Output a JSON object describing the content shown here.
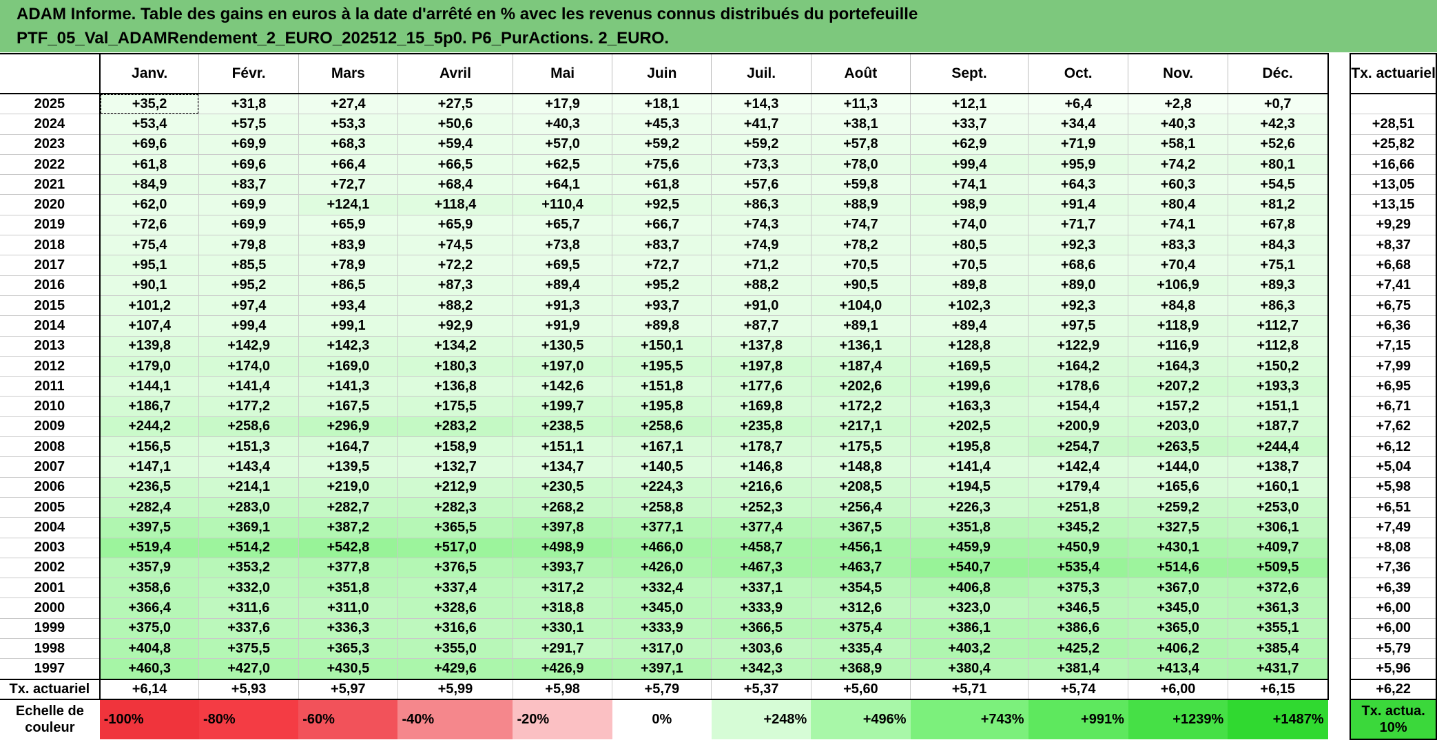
{
  "title": {
    "line1": "ADAM Informe. Table des gains en euros à la date d'arrêté en % avec les revenus connus distribués du portefeuille",
    "line2": "PTF_05_Val_ADAMRendement_2_EURO_202512_15_5p0. P6_PurActions. 2_EURO."
  },
  "columns": [
    "Janv.",
    "Févr.",
    "Mars",
    "Avril",
    "Mai",
    "Juin",
    "Juil.",
    "Août",
    "Sept.",
    "Oct.",
    "Nov.",
    "Déc."
  ],
  "tx_header": "Tx. actuariel",
  "rows": [
    {
      "year": "2025",
      "values": [
        "+35,2",
        "+31,8",
        "+27,4",
        "+27,5",
        "+17,9",
        "+18,1",
        "+14,3",
        "+11,3",
        "+12,1",
        "+6,4",
        "+2,8",
        "+0,7"
      ],
      "tx": ""
    },
    {
      "year": "2024",
      "values": [
        "+53,4",
        "+57,5",
        "+53,3",
        "+50,6",
        "+40,3",
        "+45,3",
        "+41,7",
        "+38,1",
        "+33,7",
        "+34,4",
        "+40,3",
        "+42,3"
      ],
      "tx": "+28,51"
    },
    {
      "year": "2023",
      "values": [
        "+69,6",
        "+69,9",
        "+68,3",
        "+59,4",
        "+57,0",
        "+59,2",
        "+59,2",
        "+57,8",
        "+62,9",
        "+71,9",
        "+58,1",
        "+52,6"
      ],
      "tx": "+25,82"
    },
    {
      "year": "2022",
      "values": [
        "+61,8",
        "+69,6",
        "+66,4",
        "+66,5",
        "+62,5",
        "+75,6",
        "+73,3",
        "+78,0",
        "+99,4",
        "+95,9",
        "+74,2",
        "+80,1"
      ],
      "tx": "+16,66"
    },
    {
      "year": "2021",
      "values": [
        "+84,9",
        "+83,7",
        "+72,7",
        "+68,4",
        "+64,1",
        "+61,8",
        "+57,6",
        "+59,8",
        "+74,1",
        "+64,3",
        "+60,3",
        "+54,5"
      ],
      "tx": "+13,05"
    },
    {
      "year": "2020",
      "values": [
        "+62,0",
        "+69,9",
        "+124,1",
        "+118,4",
        "+110,4",
        "+92,5",
        "+86,3",
        "+88,9",
        "+98,9",
        "+91,4",
        "+80,4",
        "+81,2"
      ],
      "tx": "+13,15"
    },
    {
      "year": "2019",
      "values": [
        "+72,6",
        "+69,9",
        "+65,9",
        "+65,9",
        "+65,7",
        "+66,7",
        "+74,3",
        "+74,7",
        "+74,0",
        "+71,7",
        "+74,1",
        "+67,8"
      ],
      "tx": "+9,29"
    },
    {
      "year": "2018",
      "values": [
        "+75,4",
        "+79,8",
        "+83,9",
        "+74,5",
        "+73,8",
        "+83,7",
        "+74,9",
        "+78,2",
        "+80,5",
        "+92,3",
        "+83,3",
        "+84,3"
      ],
      "tx": "+8,37"
    },
    {
      "year": "2017",
      "values": [
        "+95,1",
        "+85,5",
        "+78,9",
        "+72,2",
        "+69,5",
        "+72,7",
        "+71,2",
        "+70,5",
        "+70,5",
        "+68,6",
        "+70,4",
        "+75,1"
      ],
      "tx": "+6,68"
    },
    {
      "year": "2016",
      "values": [
        "+90,1",
        "+95,2",
        "+86,5",
        "+87,3",
        "+89,4",
        "+95,2",
        "+88,2",
        "+90,5",
        "+89,8",
        "+89,0",
        "+106,9",
        "+89,3"
      ],
      "tx": "+7,41"
    },
    {
      "year": "2015",
      "values": [
        "+101,2",
        "+97,4",
        "+93,4",
        "+88,2",
        "+91,3",
        "+93,7",
        "+91,0",
        "+104,0",
        "+102,3",
        "+92,3",
        "+84,8",
        "+86,3"
      ],
      "tx": "+6,75"
    },
    {
      "year": "2014",
      "values": [
        "+107,4",
        "+99,4",
        "+99,1",
        "+92,9",
        "+91,9",
        "+89,8",
        "+87,7",
        "+89,1",
        "+89,4",
        "+97,5",
        "+118,9",
        "+112,7"
      ],
      "tx": "+6,36"
    },
    {
      "year": "2013",
      "values": [
        "+139,8",
        "+142,9",
        "+142,3",
        "+134,2",
        "+130,5",
        "+150,1",
        "+137,8",
        "+136,1",
        "+128,8",
        "+122,9",
        "+116,9",
        "+112,8"
      ],
      "tx": "+7,15"
    },
    {
      "year": "2012",
      "values": [
        "+179,0",
        "+174,0",
        "+169,0",
        "+180,3",
        "+197,0",
        "+195,5",
        "+197,8",
        "+187,4",
        "+169,5",
        "+164,2",
        "+164,3",
        "+150,2"
      ],
      "tx": "+7,99"
    },
    {
      "year": "2011",
      "values": [
        "+144,1",
        "+141,4",
        "+141,3",
        "+136,8",
        "+142,6",
        "+151,8",
        "+177,6",
        "+202,6",
        "+199,6",
        "+178,6",
        "+207,2",
        "+193,3"
      ],
      "tx": "+6,95"
    },
    {
      "year": "2010",
      "values": [
        "+186,7",
        "+177,2",
        "+167,5",
        "+175,5",
        "+199,7",
        "+195,8",
        "+169,8",
        "+172,2",
        "+163,3",
        "+154,4",
        "+157,2",
        "+151,1"
      ],
      "tx": "+6,71"
    },
    {
      "year": "2009",
      "values": [
        "+244,2",
        "+258,6",
        "+296,9",
        "+283,2",
        "+238,5",
        "+258,6",
        "+235,8",
        "+217,1",
        "+202,5",
        "+200,9",
        "+203,0",
        "+187,7"
      ],
      "tx": "+7,62"
    },
    {
      "year": "2008",
      "values": [
        "+156,5",
        "+151,3",
        "+164,7",
        "+158,9",
        "+151,1",
        "+167,1",
        "+178,7",
        "+175,5",
        "+195,8",
        "+254,7",
        "+263,5",
        "+244,4"
      ],
      "tx": "+6,12"
    },
    {
      "year": "2007",
      "values": [
        "+147,1",
        "+143,4",
        "+139,5",
        "+132,7",
        "+134,7",
        "+140,5",
        "+146,8",
        "+148,8",
        "+141,4",
        "+142,4",
        "+144,0",
        "+138,7"
      ],
      "tx": "+5,04"
    },
    {
      "year": "2006",
      "values": [
        "+236,5",
        "+214,1",
        "+219,0",
        "+212,9",
        "+230,5",
        "+224,3",
        "+216,6",
        "+208,5",
        "+194,5",
        "+179,4",
        "+165,6",
        "+160,1"
      ],
      "tx": "+5,98"
    },
    {
      "year": "2005",
      "values": [
        "+282,4",
        "+283,0",
        "+282,7",
        "+282,3",
        "+268,2",
        "+258,8",
        "+252,3",
        "+256,4",
        "+226,3",
        "+251,8",
        "+259,2",
        "+253,0"
      ],
      "tx": "+6,51"
    },
    {
      "year": "2004",
      "values": [
        "+397,5",
        "+369,1",
        "+387,2",
        "+365,5",
        "+397,8",
        "+377,1",
        "+377,4",
        "+367,5",
        "+351,8",
        "+345,2",
        "+327,5",
        "+306,1"
      ],
      "tx": "+7,49"
    },
    {
      "year": "2003",
      "values": [
        "+519,4",
        "+514,2",
        "+542,8",
        "+517,0",
        "+498,9",
        "+466,0",
        "+458,7",
        "+456,1",
        "+459,9",
        "+450,9",
        "+430,1",
        "+409,7"
      ],
      "tx": "+8,08"
    },
    {
      "year": "2002",
      "values": [
        "+357,9",
        "+353,2",
        "+377,8",
        "+376,5",
        "+393,7",
        "+426,0",
        "+467,3",
        "+463,7",
        "+540,7",
        "+535,4",
        "+514,6",
        "+509,5"
      ],
      "tx": "+7,36"
    },
    {
      "year": "2001",
      "values": [
        "+358,6",
        "+332,0",
        "+351,8",
        "+337,4",
        "+317,2",
        "+332,4",
        "+337,1",
        "+354,5",
        "+406,8",
        "+375,3",
        "+367,0",
        "+372,6"
      ],
      "tx": "+6,39"
    },
    {
      "year": "2000",
      "values": [
        "+366,4",
        "+311,6",
        "+311,0",
        "+328,6",
        "+318,8",
        "+345,0",
        "+333,9",
        "+312,6",
        "+323,0",
        "+346,5",
        "+345,0",
        "+361,3"
      ],
      "tx": "+6,00"
    },
    {
      "year": "1999",
      "values": [
        "+375,0",
        "+337,6",
        "+336,3",
        "+316,6",
        "+330,1",
        "+333,9",
        "+366,5",
        "+375,4",
        "+386,1",
        "+386,6",
        "+365,0",
        "+355,1"
      ],
      "tx": "+6,00"
    },
    {
      "year": "1998",
      "values": [
        "+404,8",
        "+375,5",
        "+365,3",
        "+355,0",
        "+291,7",
        "+317,0",
        "+303,6",
        "+335,4",
        "+403,2",
        "+425,2",
        "+406,2",
        "+385,4"
      ],
      "tx": "+5,79"
    },
    {
      "year": "1997",
      "values": [
        "+460,3",
        "+427,0",
        "+430,5",
        "+429,6",
        "+426,9",
        "+397,1",
        "+342,3",
        "+368,9",
        "+380,4",
        "+381,4",
        "+413,4",
        "+431,7"
      ],
      "tx": "+5,96"
    }
  ],
  "summary": {
    "label": "Tx. actuariel",
    "values": [
      "+6,14",
      "+5,93",
      "+5,97",
      "+5,99",
      "+5,98",
      "+5,79",
      "+5,37",
      "+5,60",
      "+5,71",
      "+5,74",
      "+6,00",
      "+6,15"
    ],
    "tx": "+6,22"
  },
  "scale": {
    "label": "Echelle de couleur",
    "cells": [
      {
        "text": "-100%",
        "color": "#f0343c",
        "kind": "neg"
      },
      {
        "text": "-80%",
        "color": "#f43c44",
        "kind": "neg"
      },
      {
        "text": "-60%",
        "color": "#f2525a",
        "kind": "neg"
      },
      {
        "text": "-40%",
        "color": "#f5878c",
        "kind": "neg"
      },
      {
        "text": "-20%",
        "color": "#fbc0c3",
        "kind": "neg"
      },
      {
        "text": "0%",
        "color": "#ffffff",
        "kind": "zero"
      },
      {
        "text": "+248%",
        "color": "#d6fcd6",
        "kind": "pos"
      },
      {
        "text": "+496%",
        "color": "#a8f7a8",
        "kind": "pos"
      },
      {
        "text": "+743%",
        "color": "#7cf07c",
        "kind": "pos"
      },
      {
        "text": "+991%",
        "color": "#5ee85e",
        "kind": "pos"
      },
      {
        "text": "+1239%",
        "color": "#46e046",
        "kind": "pos"
      },
      {
        "text": "+1487%",
        "color": "#30d930",
        "kind": "pos"
      }
    ],
    "tx_label": "Tx. actua. 10%",
    "tx_color": "#3bd83b"
  },
  "colors": {
    "header_bg": "#7dc87d",
    "cell_low": "#f4fff4",
    "cell_high": "#8ef28e"
  }
}
